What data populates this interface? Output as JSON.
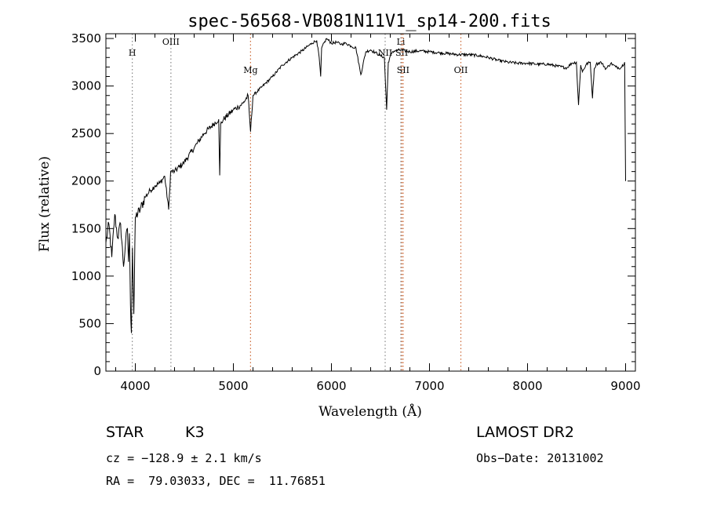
{
  "chart_data": {
    "type": "line",
    "title": "spec-56568-VB081N11V1_sp14-200.fits",
    "xlabel": "Wavelength (Å)",
    "ylabel": "Flux (relative)",
    "xlim": [
      3700,
      9100
    ],
    "ylim": [
      0,
      3550
    ],
    "xticks": [
      4000,
      5000,
      6000,
      7000,
      8000,
      9000
    ],
    "yticks": [
      0,
      500,
      1000,
      1500,
      2000,
      2500,
      3000,
      3500
    ],
    "series": [
      {
        "x": [
          3700,
          3730,
          3760,
          3790,
          3820,
          3850,
          3880,
          3900,
          3920,
          3930,
          3940,
          3950,
          3960,
          3970,
          3985,
          4000,
          4050,
          4100,
          4150,
          4200,
          4250,
          4300,
          4340,
          4360,
          4400,
          4500,
          4600,
          4700,
          4800,
          4850,
          4861,
          4870,
          4900,
          5000,
          5050,
          5100,
          5150,
          5175,
          5200,
          5300,
          5400,
          5500,
          5600,
          5700,
          5800,
          5850,
          5875,
          5890,
          5900,
          5950,
          6000,
          6050,
          6100,
          6150,
          6200,
          6250,
          6300,
          6350,
          6400,
          6450,
          6500,
          6540,
          6563,
          6580,
          6620,
          6650,
          6700,
          6750,
          6800,
          6900,
          7000,
          7100,
          7200,
          7300,
          7400,
          7500,
          7600,
          7700,
          7800,
          7900,
          8000,
          8100,
          8200,
          8300,
          8400,
          8450,
          8498,
          8520,
          8542,
          8560,
          8600,
          8640,
          8662,
          8680,
          8700,
          8750,
          8800,
          8850,
          8900,
          8950,
          8990,
          9000
        ],
        "values": [
          1350,
          1550,
          1200,
          1650,
          1400,
          1550,
          1100,
          1350,
          1500,
          1150,
          1450,
          700,
          400,
          1300,
          600,
          1620,
          1700,
          1830,
          1900,
          1950,
          1980,
          2050,
          1700,
          2100,
          2100,
          2200,
          2350,
          2500,
          2600,
          2650,
          2060,
          2600,
          2650,
          2750,
          2780,
          2820,
          2900,
          2520,
          2900,
          3000,
          3100,
          3220,
          3300,
          3370,
          3450,
          3480,
          3300,
          3100,
          3400,
          3500,
          3450,
          3460,
          3440,
          3450,
          3420,
          3400,
          3120,
          3360,
          3380,
          3350,
          3320,
          3300,
          2750,
          3250,
          3360,
          3370,
          3380,
          3370,
          3360,
          3370,
          3360,
          3350,
          3340,
          3330,
          3330,
          3320,
          3300,
          3270,
          3250,
          3240,
          3240,
          3230,
          3230,
          3210,
          3190,
          3240,
          3250,
          2800,
          3220,
          3150,
          3230,
          3250,
          2870,
          3180,
          3230,
          3250,
          3180,
          3240,
          3200,
          3190,
          3250,
          2000
        ]
      }
    ],
    "grid": false
  },
  "spectral_lines": [
    {
      "name": "H",
      "wavelength": 3969,
      "color": "#888888"
    },
    {
      "name": "OIII",
      "wavelength": 4363,
      "color": "#888888"
    },
    {
      "name": "Mg",
      "wavelength": 5175,
      "color": "#cc6633"
    },
    {
      "name": "NII",
      "wavelength": 6548,
      "color": "#888888"
    },
    {
      "name": "Li",
      "wavelength": 6708,
      "color": "#888888"
    },
    {
      "name": "SII",
      "wavelength": 6717,
      "color": "#cc6633"
    },
    {
      "name": "SII",
      "wavelength": 6731,
      "color": "#cc6633"
    },
    {
      "name": "OII",
      "wavelength": 7320,
      "color": "#cc6633"
    }
  ],
  "info": {
    "class_label": "STAR",
    "subclass": "K3",
    "survey": "LAMOST DR2",
    "cz": "cz = −128.9 ± 2.1 km/s",
    "obs_date": "Obs−Date: 20131002",
    "radec": "RA =  79.03033, DEC =  11.76851"
  }
}
